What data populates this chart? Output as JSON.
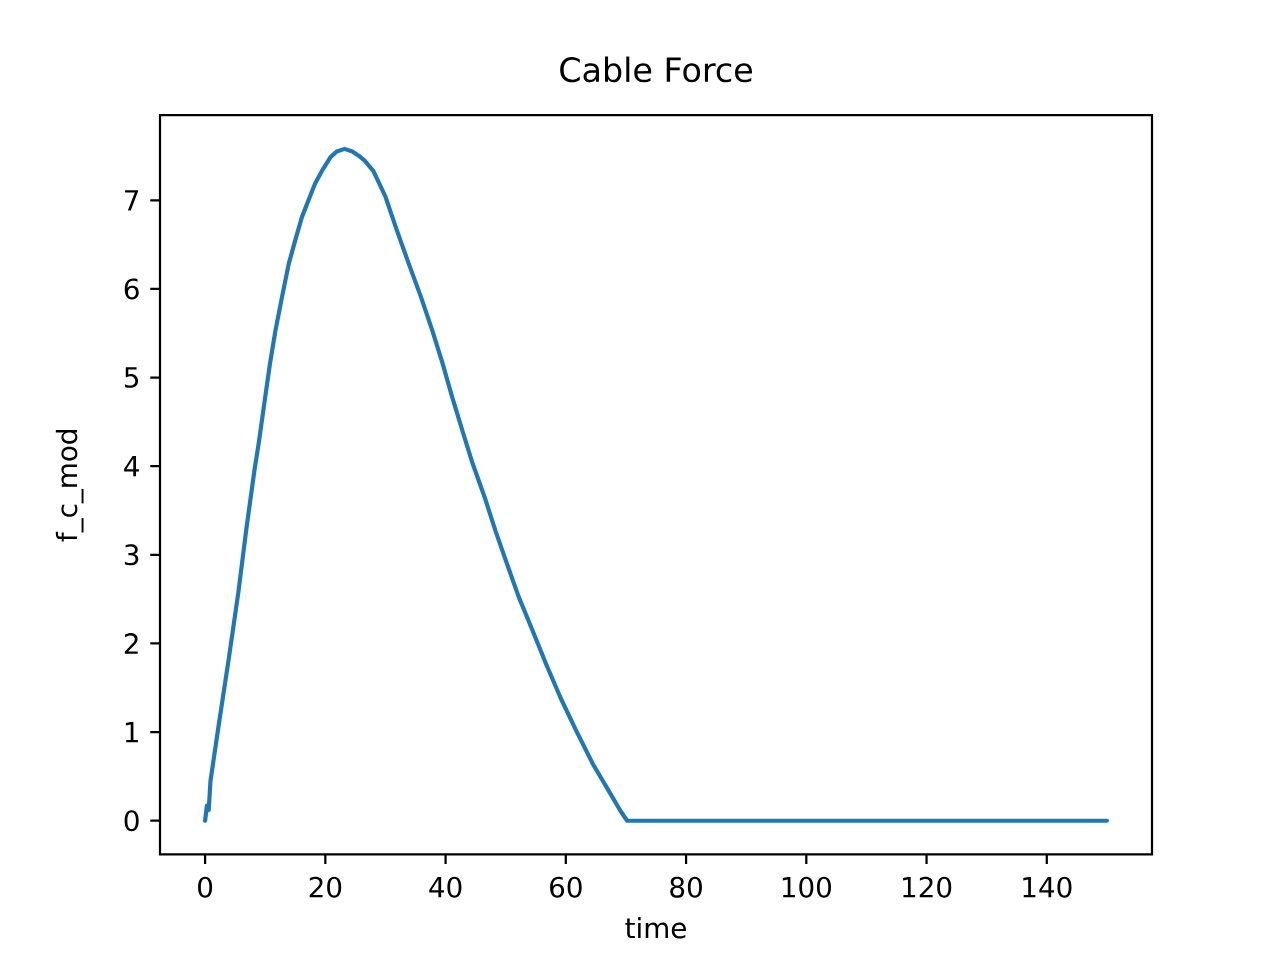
{
  "chart_data": {
    "type": "line",
    "title": "Cable Force",
    "xlabel": "time",
    "ylabel": "f_c_mod",
    "x": [
      0,
      0.3,
      0.6,
      0.9,
      2.2,
      3.9,
      5.5,
      6.9,
      8.2,
      8.9,
      10,
      10.8,
      11.7,
      12.8,
      13.9,
      15,
      16.1,
      17.2,
      18.3,
      19.5,
      20.9,
      21.9,
      23.2,
      24.5,
      25.6,
      26.5,
      28,
      30,
      31.9,
      33.9,
      35.9,
      37.8,
      39.5,
      41.1,
      42.8,
      44.5,
      46.5,
      48.3,
      50.2,
      52.2,
      54.5,
      56.7,
      59.1,
      61.7,
      64.5,
      67.8,
      69.1,
      70.2,
      150
    ],
    "series": [
      {
        "color": "#1f77b4",
        "values": [
          0,
          0.17,
          0.12,
          0.45,
          1.05,
          1.81,
          2.56,
          3.31,
          3.95,
          4.25,
          4.78,
          5.16,
          5.53,
          5.91,
          6.28,
          6.55,
          6.81,
          7.0,
          7.19,
          7.34,
          7.49,
          7.55,
          7.58,
          7.55,
          7.5,
          7.45,
          7.33,
          7.04,
          6.66,
          6.28,
          5.91,
          5.53,
          5.16,
          4.78,
          4.4,
          4.03,
          3.65,
          3.27,
          2.9,
          2.52,
          2.14,
          1.77,
          1.39,
          1.02,
          0.64,
          0.26,
          0.11,
          0,
          0
        ]
      }
    ],
    "xlim": [
      -7.5,
      157.5
    ],
    "ylim": [
      -0.38,
      7.96
    ],
    "xticks": [
      0,
      20,
      40,
      60,
      80,
      100,
      120,
      140
    ],
    "yticks": [
      0,
      1,
      2,
      3,
      4,
      5,
      6,
      7
    ],
    "marker": "none",
    "line_style": "solid"
  }
}
